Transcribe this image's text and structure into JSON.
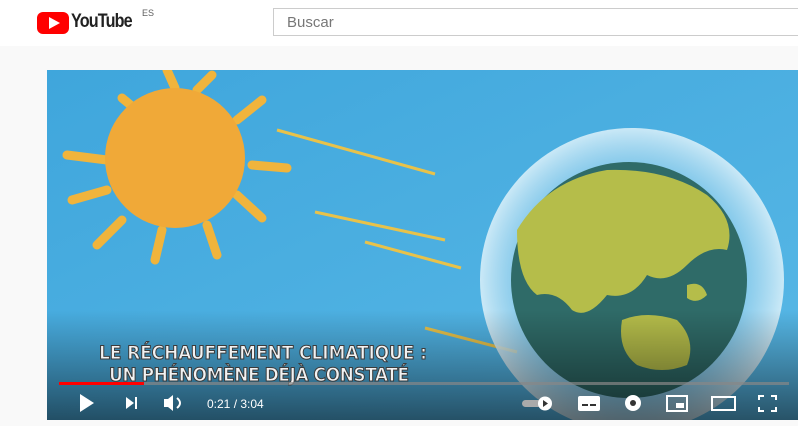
{
  "header": {
    "logo_text": "YouTube",
    "region": "ES",
    "search_placeholder": "Buscar"
  },
  "video": {
    "caption_line1": "LE RÉCHAUFFEMENT CLIMATIQUE :",
    "caption_line2": "UN PHÉNOMÈNE DÉJÀ CONSTATÉ"
  },
  "controls": {
    "time": "0:21 / 3:04"
  }
}
